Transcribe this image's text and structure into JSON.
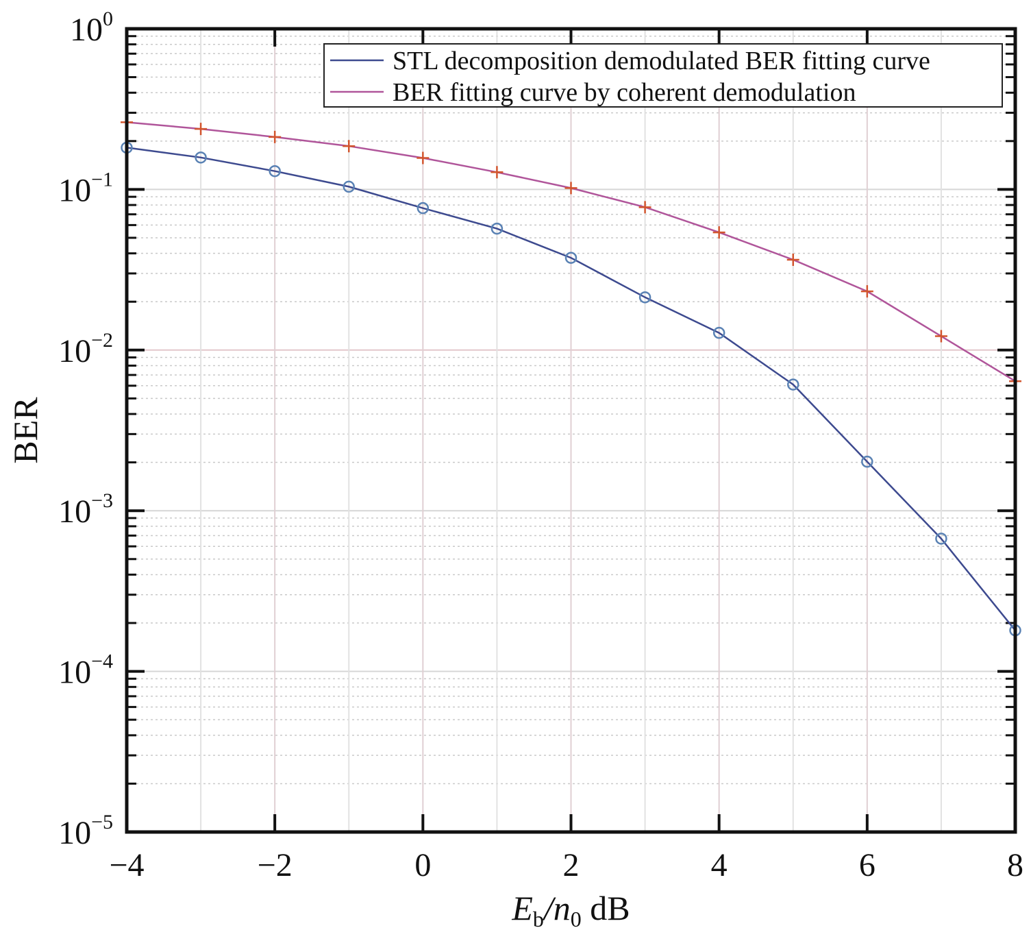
{
  "chart_data": {
    "type": "line",
    "title": "",
    "xlabel": "E_b/n_0 dB",
    "xlabel_parts": {
      "main": "E",
      "sub1": "b",
      "slash": "/n",
      "sub2": "0",
      "unit": " dB"
    },
    "ylabel": "BER",
    "xlim": [
      -4,
      8
    ],
    "ylim": [
      1e-05,
      1
    ],
    "yscale": "log",
    "grid": true,
    "legend_position": "top-right",
    "x_ticks": [
      -4,
      -2,
      0,
      2,
      4,
      6,
      8
    ],
    "x_tick_labels": [
      "−4",
      "−2",
      "0",
      "2",
      "4",
      "6",
      "8"
    ],
    "y_ticks": [
      1e-05,
      0.0001,
      0.001,
      0.01,
      0.1,
      1
    ],
    "y_tick_labels": [
      {
        "base": "10",
        "exp": "−5"
      },
      {
        "base": "10",
        "exp": "−4"
      },
      {
        "base": "10",
        "exp": "−3"
      },
      {
        "base": "10",
        "exp": "−2"
      },
      {
        "base": "10",
        "exp": "−1"
      },
      {
        "base": "10",
        "exp": "0"
      }
    ],
    "x": [
      -4,
      -3,
      -2,
      -1,
      0,
      1,
      2,
      3,
      4,
      5,
      6,
      7,
      8
    ],
    "series": [
      {
        "name": "STL decomposition demodulated BER fitting curve",
        "line_color": "#3d4a8f",
        "marker": "circle",
        "marker_color": "#5a82b4",
        "values": [
          0.182,
          0.158,
          0.13,
          0.104,
          0.0765,
          0.057,
          0.0375,
          0.0213,
          0.0128,
          0.0061,
          0.00202,
          0.00067,
          0.00018
        ]
      },
      {
        "name": "BER fitting curve by coherent demodulation",
        "line_color": "#b0559a",
        "marker": "plus",
        "marker_color": "#d2552e",
        "values": [
          0.262,
          0.238,
          0.212,
          0.186,
          0.157,
          0.128,
          0.102,
          0.0775,
          0.054,
          0.0365,
          0.0232,
          0.0122,
          0.0064
        ]
      }
    ]
  }
}
